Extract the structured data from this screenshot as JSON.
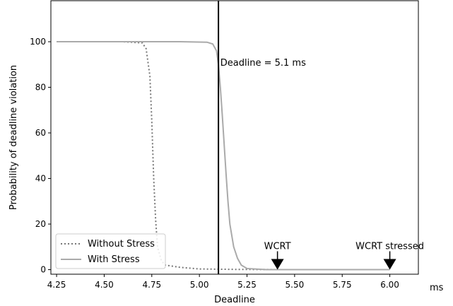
{
  "chart_data": {
    "type": "line",
    "xlabel": "Deadline",
    "ylabel": "Probability of deadline violation",
    "x_unit_label": "ms",
    "xlim": [
      4.22,
      6.15
    ],
    "ylim": [
      -2,
      118
    ],
    "xticks": [
      "4.25",
      "4.50",
      "4.75",
      "5.00",
      "5.25",
      "5.50",
      "5.75",
      "6.00"
    ],
    "yticks": [
      "0",
      "20",
      "40",
      "60",
      "80",
      "100"
    ],
    "grid": false,
    "legend_position": "lower-left",
    "series": [
      {
        "name": "Without Stress",
        "style": "dotted",
        "color": "#777777",
        "points": [
          [
            4.25,
            100
          ],
          [
            4.6,
            100
          ],
          [
            4.7,
            99.5
          ],
          [
            4.72,
            97
          ],
          [
            4.74,
            85
          ],
          [
            4.75,
            65
          ],
          [
            4.76,
            40
          ],
          [
            4.77,
            22
          ],
          [
            4.78,
            10
          ],
          [
            4.8,
            4
          ],
          [
            4.82,
            2
          ],
          [
            4.9,
            1
          ],
          [
            5.0,
            0.3
          ],
          [
            5.2,
            0.1
          ],
          [
            5.5,
            0
          ],
          [
            6.0,
            0
          ]
        ]
      },
      {
        "name": "With Stress",
        "style": "solid",
        "color": "#aaaaaa",
        "points": [
          [
            4.25,
            100
          ],
          [
            4.9,
            100
          ],
          [
            5.04,
            99.8
          ],
          [
            5.07,
            99
          ],
          [
            5.09,
            96
          ],
          [
            5.1,
            90
          ],
          [
            5.11,
            80
          ],
          [
            5.12,
            68
          ],
          [
            5.13,
            55
          ],
          [
            5.14,
            42
          ],
          [
            5.15,
            30
          ],
          [
            5.16,
            20
          ],
          [
            5.18,
            10
          ],
          [
            5.2,
            5
          ],
          [
            5.22,
            2
          ],
          [
            5.25,
            0.5
          ],
          [
            5.35,
            0
          ],
          [
            6.0,
            0
          ]
        ]
      }
    ],
    "vline": {
      "x": 5.1,
      "color": "#000000"
    },
    "annotations": [
      {
        "text": "Deadline = 5.1 ms",
        "x": 5.11,
        "y": 91
      },
      {
        "text": "WCRT",
        "x": 5.41,
        "y": 0
      },
      {
        "text": "WCRT stressed",
        "x": 6.0,
        "y": 0
      }
    ]
  }
}
